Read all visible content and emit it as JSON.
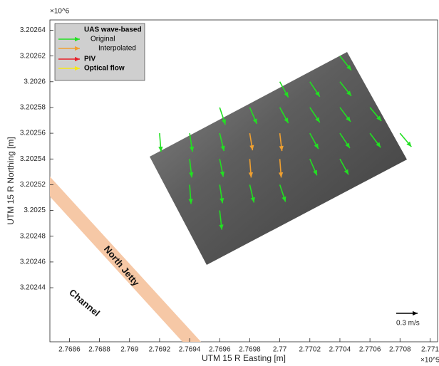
{
  "chart_data": {
    "type": "quiver",
    "xlabel": "UTM 15 R Easting [m]",
    "ylabel": "UTM 15 R Northing [m]",
    "x_exponent": "×10^5",
    "y_exponent": "×10^6",
    "xlim": [
      2.76847,
      2.77105
    ],
    "ylim": [
      3.202398,
      3.202648
    ],
    "xticks": [
      2.7686,
      2.7688,
      2.769,
      2.7692,
      2.7694,
      2.7696,
      2.7698,
      2.77,
      2.7702,
      2.7704,
      2.7706,
      2.7708,
      2.771
    ],
    "yticks": [
      3.20244,
      3.20246,
      3.20248,
      3.2025,
      3.20252,
      3.20254,
      3.20256,
      3.20258,
      3.2026,
      3.20262,
      3.20264
    ],
    "legend_title": "UAS wave-based",
    "legend_extra": [
      {
        "name": "PIV",
        "color": "#e8202a"
      },
      {
        "name": "Optical flow",
        "color": "#f5e71a"
      }
    ],
    "annotations": [
      "North Jetty",
      "Channel"
    ],
    "key": {
      "value": 0.3,
      "label": "0.3 m/s"
    },
    "series": [
      {
        "name": "Original",
        "color": "#22e022",
        "x": [
          2.7704,
          2.77,
          2.7702,
          2.7704,
          2.7696,
          2.7698,
          2.77,
          2.7702,
          2.7704,
          2.7706,
          2.7692,
          2.7694,
          2.7696,
          2.7702,
          2.7704,
          2.7706,
          2.7708,
          2.7694,
          2.7696,
          2.7702,
          2.7704,
          2.7694,
          2.7696,
          2.7698,
          2.77,
          2.7696
        ],
        "y": [
          3.20262,
          3.2026,
          3.2026,
          3.2026,
          3.20258,
          3.20258,
          3.20258,
          3.20258,
          3.20258,
          3.20258,
          3.20256,
          3.20256,
          3.20256,
          3.20256,
          3.20256,
          3.20256,
          3.20256,
          3.20254,
          3.20254,
          3.20254,
          3.20254,
          3.20252,
          3.20252,
          3.20252,
          3.20252,
          3.2025
        ],
        "u": [
          0.16,
          0.12,
          0.14,
          0.16,
          0.08,
          0.1,
          0.12,
          0.14,
          0.15,
          0.16,
          0.02,
          0.04,
          0.06,
          0.12,
          0.14,
          0.15,
          0.16,
          0.03,
          0.05,
          0.1,
          0.12,
          0.02,
          0.04,
          0.06,
          0.08,
          0.03
        ],
        "v": [
          -0.2,
          -0.22,
          -0.21,
          -0.2,
          -0.24,
          -0.23,
          -0.22,
          -0.21,
          -0.2,
          -0.19,
          -0.26,
          -0.26,
          -0.25,
          -0.22,
          -0.21,
          -0.2,
          -0.19,
          -0.26,
          -0.25,
          -0.23,
          -0.22,
          -0.27,
          -0.26,
          -0.25,
          -0.24,
          -0.27
        ]
      },
      {
        "name": "Interpolated",
        "color": "#f0a030",
        "x": [
          2.7698,
          2.77,
          2.7698,
          2.77
        ],
        "y": [
          3.20256,
          3.20256,
          3.20254,
          3.20254
        ],
        "u": [
          0.04,
          0.03,
          0.02,
          0.02
        ],
        "v": [
          -0.24,
          -0.25,
          -0.26,
          -0.26
        ]
      }
    ]
  }
}
